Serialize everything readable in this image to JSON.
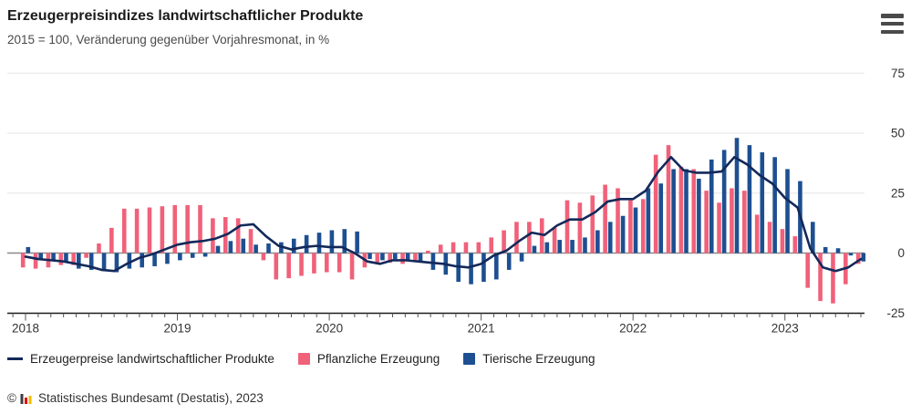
{
  "header": {
    "title": "Erzeugerpreisindizes landwirtschaftlicher Produkte",
    "subtitle": "2015 = 100, Veränderung gegenüber Vorjahresmonat, in %"
  },
  "footer": {
    "copyright_symbol": "©",
    "source_text": "Statistisches Bundesamt (Destatis), 2023",
    "logo_bar_colors": [
      "#3c3c3c",
      "#e10019",
      "#f8ba00"
    ]
  },
  "colors": {
    "background": "#ffffff",
    "grid": "#e6e6e6",
    "zero_line": "#8a8a8a",
    "axis": "#1a1a1a",
    "tick": "#555555",
    "tick_text": "#333333",
    "menu_icon": "#4a4a4a"
  },
  "chart_data": {
    "type": "bar+line",
    "title": "Erzeugerpreisindizes landwirtschaftlicher Produkte",
    "subtitle": "2015 = 100, Veränderung gegenüber Vorjahresmonat, in %",
    "unit": "%",
    "x": {
      "start": "2018-01",
      "end": "2023-07",
      "interval": "monthly",
      "count": 67
    },
    "x_tick_labels": [
      "2018",
      "2019",
      "2020",
      "2021",
      "2022",
      "2023"
    ],
    "x_tick_month_index": [
      0,
      12,
      24,
      36,
      48,
      60
    ],
    "y_ticks": [
      75,
      50,
      25,
      0,
      -25
    ],
    "ylim": [
      -25,
      75
    ],
    "grid": true,
    "legend_position": "bottom",
    "series": [
      {
        "name": "Erzeugerpreise landwirtschaftlicher Produkte",
        "type": "line",
        "color": "#13295a",
        "values": [
          -1.5,
          -2.5,
          -3,
          -3.5,
          -4.5,
          -5.5,
          -7,
          -7.5,
          -4.5,
          -2,
          -0.5,
          1.5,
          3.5,
          4.5,
          5,
          6,
          8,
          11.5,
          12,
          7,
          3,
          1.5,
          2.5,
          3,
          2.5,
          2.5,
          0,
          -3.5,
          -4.5,
          -3,
          -3,
          -3.5,
          -4,
          -4.5,
          -5.5,
          -6,
          -4.5,
          -1,
          1,
          5,
          8.5,
          7.5,
          11.5,
          14,
          14,
          17,
          21.5,
          22.5,
          22.5,
          26,
          34,
          40,
          34.5,
          33.5,
          33.5,
          34,
          40,
          37,
          32.5,
          29,
          23,
          19,
          2,
          -6,
          -7.5,
          -6,
          -2.5
        ]
      },
      {
        "name": "Pflanzliche Erzeugung",
        "type": "bar",
        "color": "#f0617a",
        "values": [
          -6,
          -6.5,
          -6,
          -5,
          -5,
          -2,
          4,
          10.5,
          18.5,
          18.5,
          19,
          19.5,
          20,
          20,
          20,
          14.5,
          15,
          14.5,
          10,
          -3,
          -11,
          -10.5,
          -9.5,
          -8.5,
          -8,
          -8,
          -11,
          -6,
          -4.5,
          -4,
          -4.5,
          -3,
          1,
          3.5,
          4.5,
          4.5,
          4.5,
          6.5,
          9.5,
          13,
          13,
          14.5,
          10.5,
          22,
          21,
          24,
          28.5,
          27,
          22,
          22.5,
          41,
          45,
          36,
          35,
          26,
          21,
          27,
          26,
          16,
          13,
          10,
          7,
          -14.5,
          -20,
          -21,
          -13,
          -4.5
        ]
      },
      {
        "name": "Tierische Erzeugung",
        "type": "bar",
        "color": "#1d4f91",
        "values": [
          2.5,
          -2.5,
          -3,
          -4,
          -6.5,
          -7,
          -7.5,
          -8,
          -6.5,
          -6,
          -5.5,
          -4.5,
          -3,
          -2,
          -1.5,
          3,
          5,
          6,
          3.5,
          4,
          4.5,
          6,
          7.5,
          8.5,
          9.5,
          10,
          9,
          -2.5,
          -3,
          -2.5,
          -3,
          -3.5,
          -7,
          -9,
          -12,
          -13,
          -12,
          -11,
          -7,
          -3.5,
          3,
          4.5,
          5.5,
          5.5,
          6.5,
          9.5,
          13,
          15.5,
          19,
          27,
          29,
          35,
          35,
          31,
          39,
          43,
          48,
          45,
          42,
          40,
          35,
          30,
          13,
          2.5,
          2,
          -1,
          -3.5
        ]
      }
    ]
  }
}
